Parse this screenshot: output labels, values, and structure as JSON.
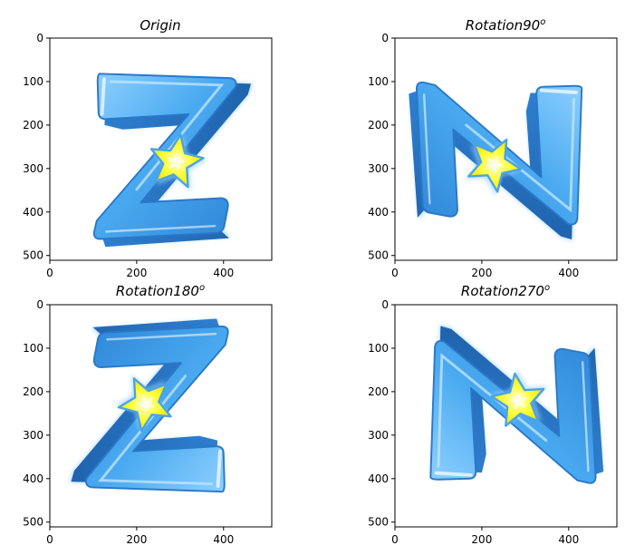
{
  "chart_data": [
    {
      "type": "image",
      "title": "Origin",
      "title_superscript": "",
      "rotation_deg": 0,
      "xlim": [
        0,
        511
      ],
      "ylim": [
        511,
        0
      ],
      "xticks": [
        0,
        200,
        400
      ],
      "yticks": [
        0,
        100,
        200,
        300,
        400,
        500
      ],
      "grid": false
    },
    {
      "type": "image",
      "title": "Rotation90",
      "title_superscript": "o",
      "rotation_deg": 90,
      "xlim": [
        0,
        511
      ],
      "ylim": [
        511,
        0
      ],
      "xticks": [
        0,
        200,
        400
      ],
      "yticks": [
        0,
        100,
        200,
        300,
        400,
        500
      ],
      "grid": false
    },
    {
      "type": "image",
      "title": "Rotation180",
      "title_superscript": "o",
      "rotation_deg": 180,
      "xlim": [
        0,
        511
      ],
      "ylim": [
        511,
        0
      ],
      "xticks": [
        0,
        200,
        400
      ],
      "yticks": [
        0,
        100,
        200,
        300,
        400,
        500
      ],
      "grid": false
    },
    {
      "type": "image",
      "title": "Rotation270",
      "title_superscript": "o",
      "rotation_deg": 270,
      "xlim": [
        0,
        511
      ],
      "ylim": [
        511,
        0
      ],
      "xticks": [
        0,
        200,
        400
      ],
      "yticks": [
        0,
        100,
        200,
        300,
        400,
        500
      ],
      "grid": false
    }
  ],
  "colors": {
    "letter_face": "#4aaaf0",
    "letter_side": "#2a78c8",
    "letter_highlight": "#bfe4ff",
    "glow": "#9fd3ff",
    "star_fill": "#ffff2a",
    "star_stroke": "#4aa3e8"
  }
}
